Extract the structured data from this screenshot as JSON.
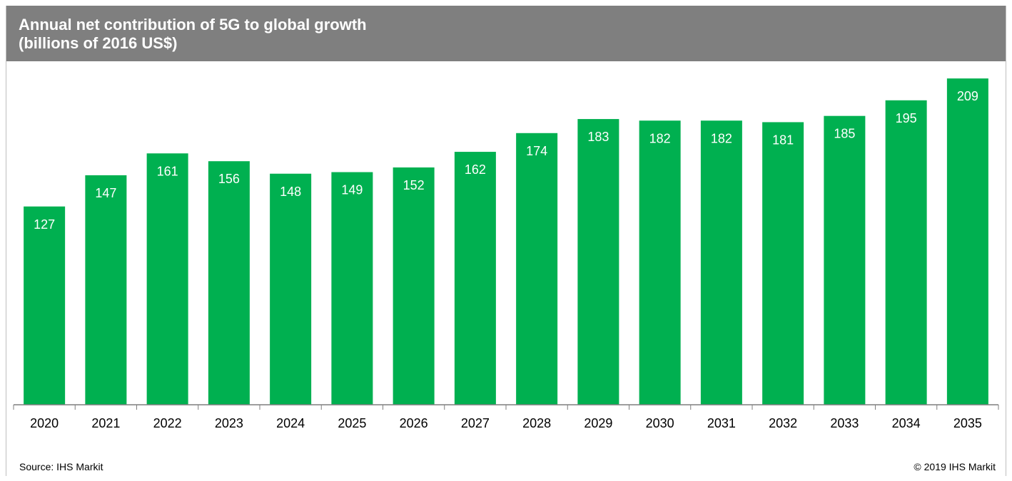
{
  "chart_data": {
    "type": "bar",
    "title": "Annual net contribution of 5G to global growth",
    "subtitle": "(billions  of 2016 US$)",
    "categories": [
      "2020",
      "2021",
      "2022",
      "2023",
      "2024",
      "2025",
      "2026",
      "2027",
      "2028",
      "2029",
      "2030",
      "2031",
      "2032",
      "2033",
      "2034",
      "2035"
    ],
    "values": [
      127,
      147,
      161,
      156,
      148,
      149,
      152,
      162,
      174,
      183,
      182,
      182,
      181,
      185,
      195,
      209
    ],
    "xlabel": "",
    "ylabel": "",
    "ylim": [
      0,
      220
    ],
    "grid": false,
    "legend": "none",
    "data_labels": true,
    "colors": {
      "bar": "#00b050",
      "label_text": "#ffffff",
      "title_bar": "#7f7f7f",
      "axis": "#7f7f7f"
    }
  },
  "footer": {
    "source": "Source: IHS Markit",
    "copyright": "© 2019 IHS Markit"
  }
}
